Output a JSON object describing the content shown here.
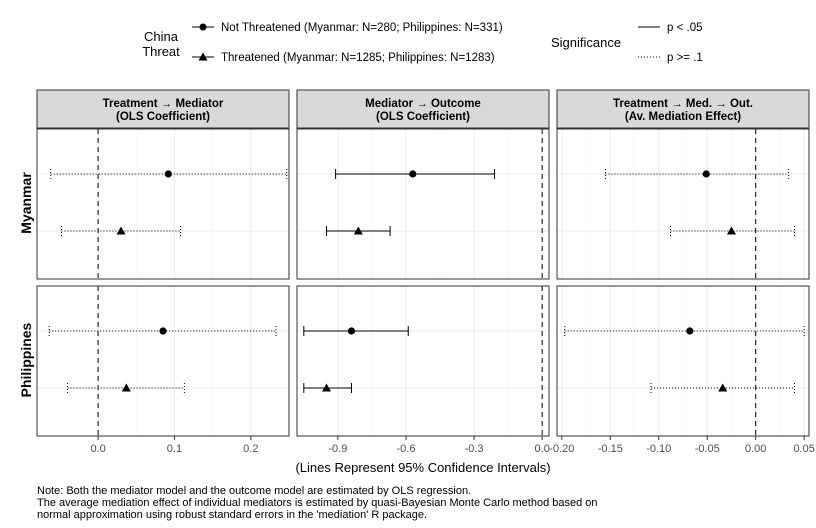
{
  "legend": {
    "group_title_line1": "China",
    "group_title_line2": "Threat",
    "groups": [
      {
        "label": "Not Threatened (Myanmar: N=280; Philippines: N=331)",
        "marker": "circle"
      },
      {
        "label": "Threatened (Myanmar: N=1285; Philippines: N=1283)",
        "marker": "triangle"
      }
    ],
    "sig_title": "Significance",
    "sig": [
      {
        "label": "p < .05",
        "line": "solid"
      },
      {
        "label": "p >= .1",
        "line": "dotted"
      }
    ]
  },
  "chart_data": {
    "type": "scatter",
    "subtype": "coefficient-interval-facets",
    "xlabel": "(Lines Represent 95% Confidence Intervals)",
    "rows": [
      "Myanmar",
      "Philippines"
    ],
    "columns": [
      {
        "title_line1": "Treatment → Mediator",
        "title_line2": "(OLS Coefficient)",
        "xlim": [
          -0.08,
          0.25
        ],
        "ticks": [
          0.0,
          0.1,
          0.2
        ],
        "tick_labels": [
          "0.0",
          "0.1",
          "0.2"
        ],
        "reference": 0
      },
      {
        "title_line1": "Mediator → Outcome",
        "title_line2": "(OLS Coefficient)",
        "xlim": [
          -1.08,
          0.03
        ],
        "ticks": [
          -0.9,
          -0.6,
          -0.3,
          0.0
        ],
        "tick_labels": [
          "-0.9",
          "-0.6",
          "-0.3",
          "0.0"
        ],
        "reference": 0
      },
      {
        "title_line1": "Treatment → Med. → Out.",
        "title_line2": "(Av. Mediation Effect)",
        "xlim": [
          -0.205,
          0.055
        ],
        "ticks": [
          -0.2,
          -0.15,
          -0.1,
          -0.05,
          0.0,
          0.05
        ],
        "tick_labels": [
          "-0.20",
          "-0.15",
          "-0.10",
          "-0.05",
          "0.00",
          "0.05"
        ],
        "reference": 0
      }
    ],
    "points": [
      {
        "row": "Myanmar",
        "col": 0,
        "group": "Not Threatened",
        "est": 0.092,
        "lo": -0.062,
        "hi": 0.247,
        "sig": "p >= .1"
      },
      {
        "row": "Myanmar",
        "col": 0,
        "group": "Threatened",
        "est": 0.03,
        "lo": -0.048,
        "hi": 0.108,
        "sig": "p >= .1"
      },
      {
        "row": "Philippines",
        "col": 0,
        "group": "Not Threatened",
        "est": 0.085,
        "lo": -0.064,
        "hi": 0.233,
        "sig": "p >= .1"
      },
      {
        "row": "Philippines",
        "col": 0,
        "group": "Threatened",
        "est": 0.037,
        "lo": -0.04,
        "hi": 0.113,
        "sig": "p >= .1"
      },
      {
        "row": "Myanmar",
        "col": 1,
        "group": "Not Threatened",
        "est": -0.57,
        "lo": -0.91,
        "hi": -0.21,
        "sig": "p < .05"
      },
      {
        "row": "Myanmar",
        "col": 1,
        "group": "Threatened",
        "est": -0.81,
        "lo": -0.95,
        "hi": -0.67,
        "sig": "p < .05"
      },
      {
        "row": "Philippines",
        "col": 1,
        "group": "Not Threatened",
        "est": -0.84,
        "lo": -1.05,
        "hi": -0.59,
        "sig": "p < .05"
      },
      {
        "row": "Philippines",
        "col": 1,
        "group": "Threatened",
        "est": -0.95,
        "lo": -1.05,
        "hi": -0.84,
        "sig": "p < .05"
      },
      {
        "row": "Myanmar",
        "col": 2,
        "group": "Not Threatened",
        "est": -0.051,
        "lo": -0.155,
        "hi": 0.034,
        "sig": "p >= .1"
      },
      {
        "row": "Myanmar",
        "col": 2,
        "group": "Threatened",
        "est": -0.025,
        "lo": -0.088,
        "hi": 0.04,
        "sig": "p >= .1"
      },
      {
        "row": "Philippines",
        "col": 2,
        "group": "Not Threatened",
        "est": -0.068,
        "lo": -0.197,
        "hi": 0.05,
        "sig": "p >= .1"
      },
      {
        "row": "Philippines",
        "col": 2,
        "group": "Threatened",
        "est": -0.034,
        "lo": -0.108,
        "hi": 0.04,
        "sig": "p >= .1"
      }
    ]
  },
  "note": {
    "line1": "Note: Both the mediator model and the outcome model are estimated by OLS regression.",
    "line2": "The average mediation effect of individual mediators is estimated by quasi-Bayesian Monte Carlo method based on",
    "line3": "normal approximation using robust standard errors in the 'mediation' R package."
  }
}
